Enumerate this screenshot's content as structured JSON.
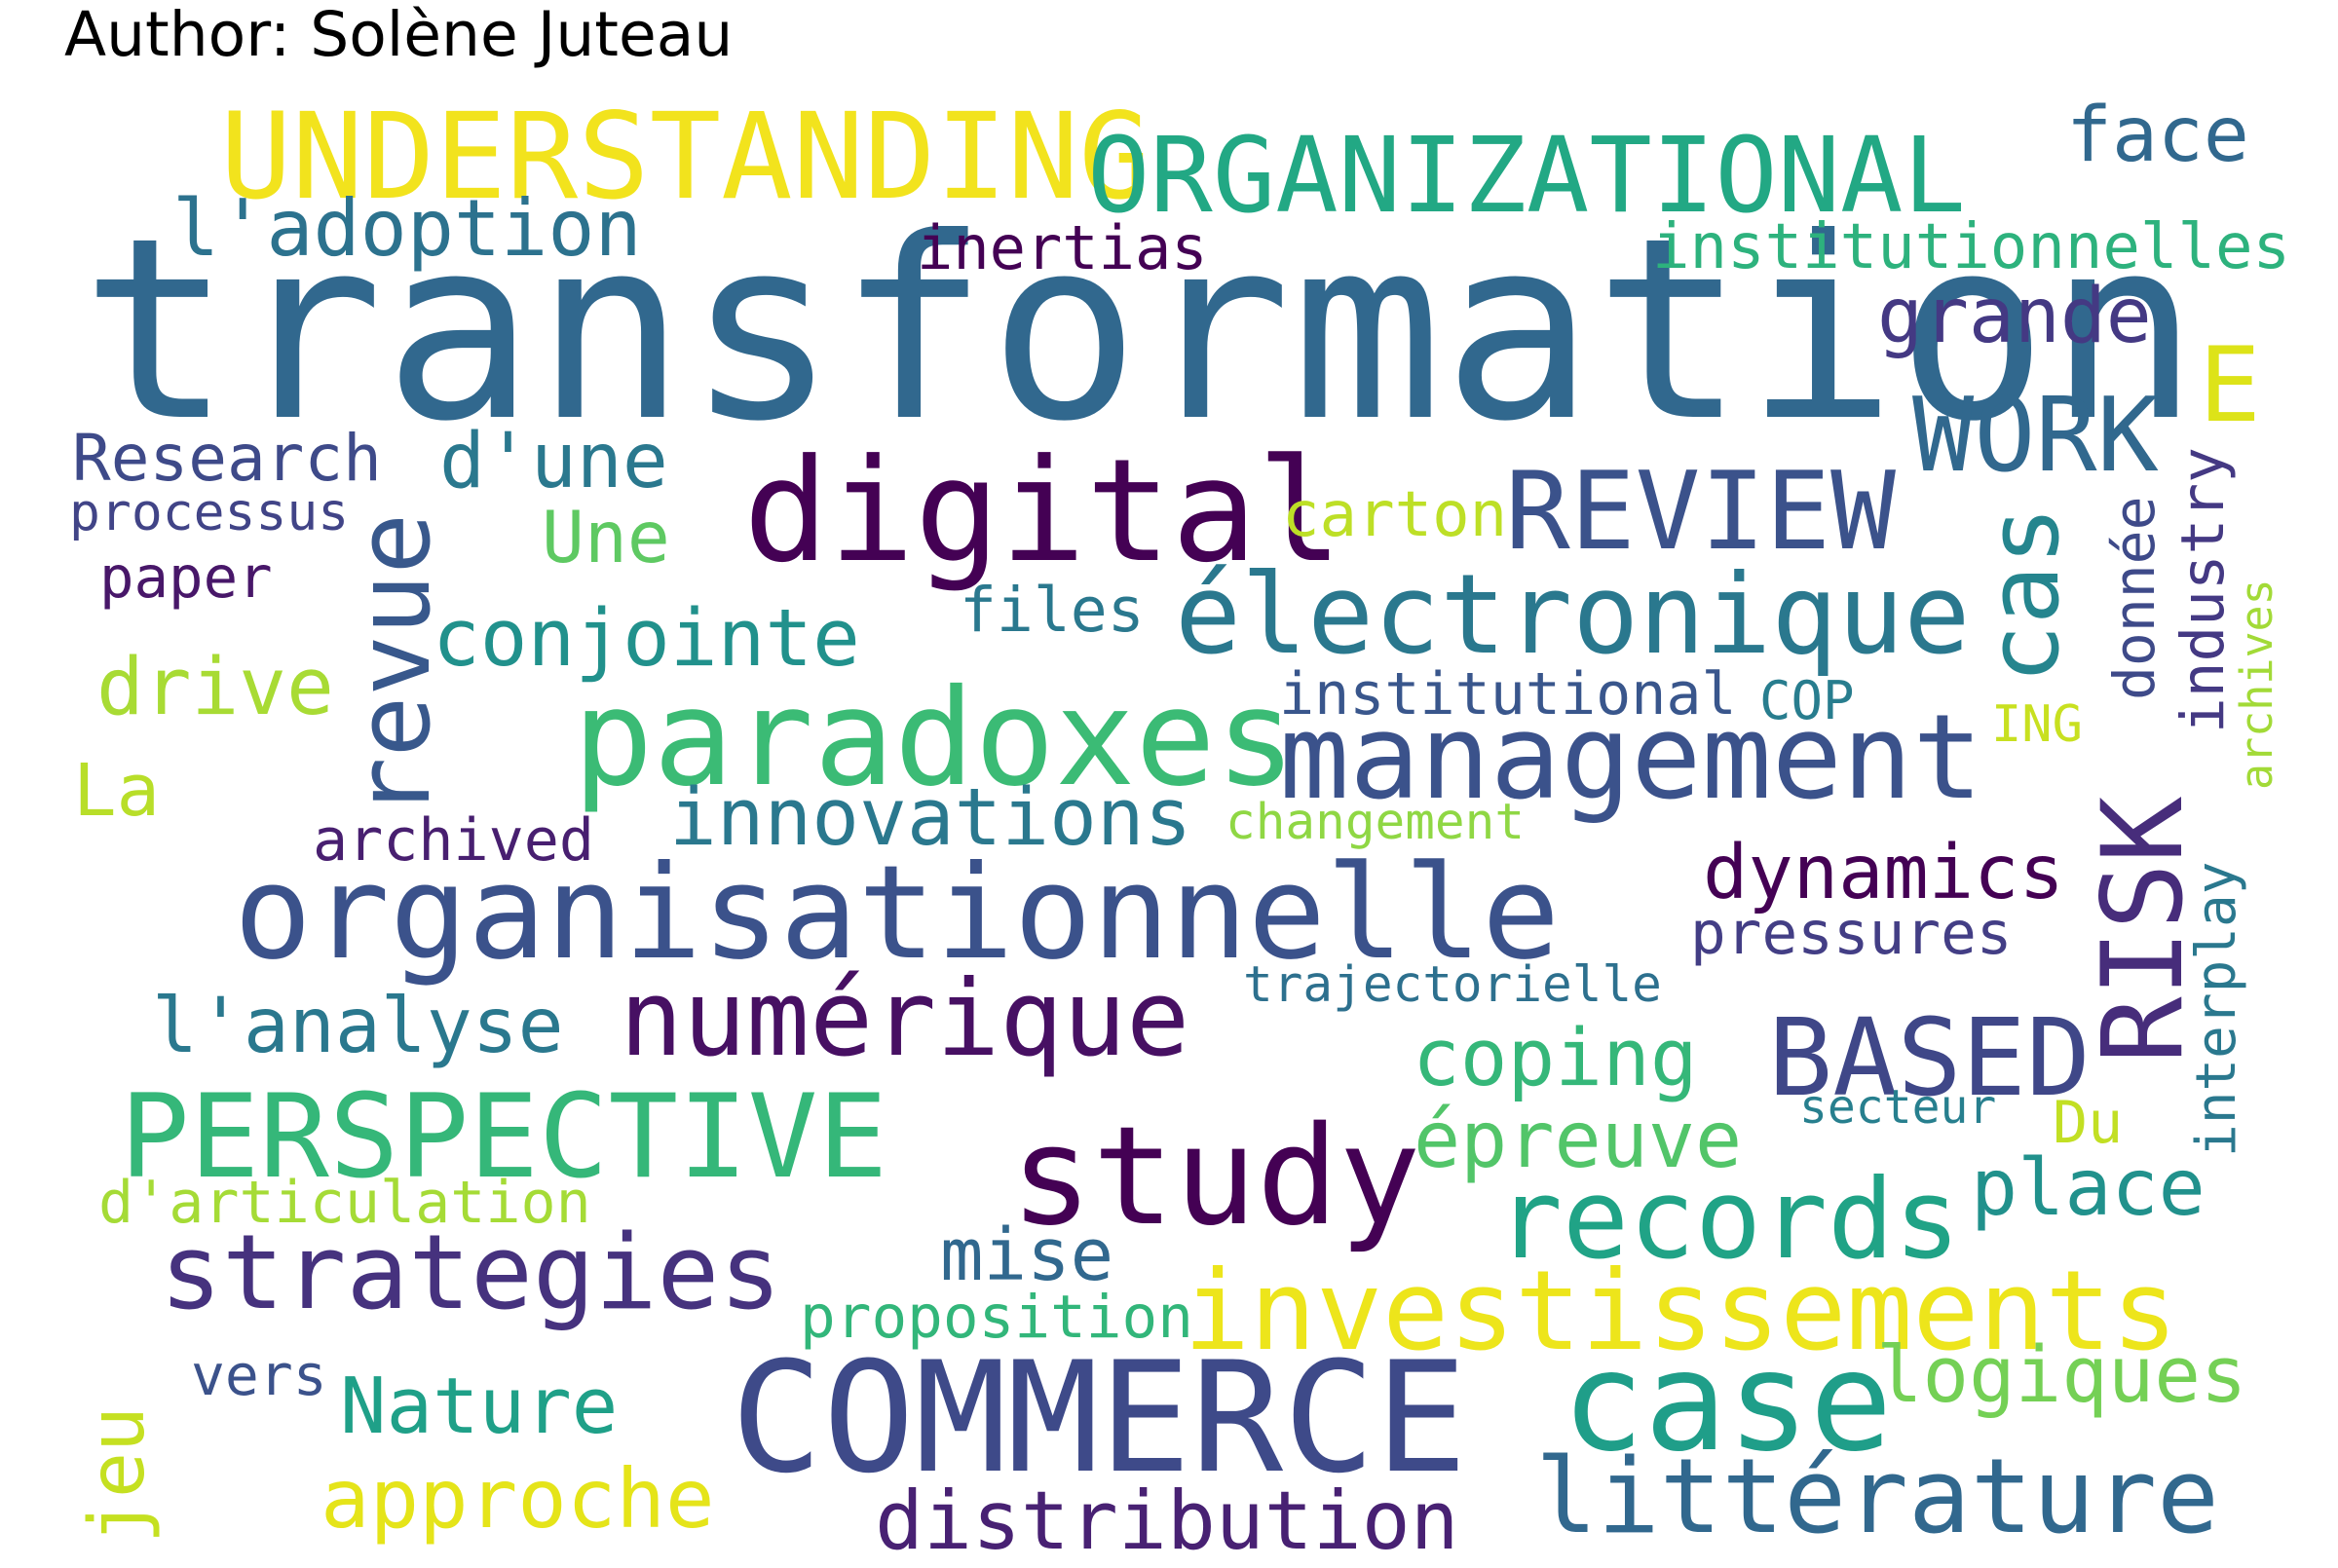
{
  "author_label": "Author: Solène Juteau",
  "words": [
    {
      "text": "transformation",
      "color": "#31688e"
    },
    {
      "text": "UNDERSTANDING",
      "color": "#f2e31d"
    },
    {
      "text": "ORGANIZATIONAL",
      "color": "#22a884"
    },
    {
      "text": "face",
      "color": "#31688e"
    },
    {
      "text": "l'adoption",
      "color": "#2c728e"
    },
    {
      "text": "inertias",
      "color": "#440154"
    },
    {
      "text": "institutionnelles",
      "color": "#2db27d"
    },
    {
      "text": "grande",
      "color": "#443983"
    },
    {
      "text": "E",
      "color": "#dde318"
    },
    {
      "text": "WORK",
      "color": "#31688e"
    },
    {
      "text": "digital",
      "color": "#440154"
    },
    {
      "text": "REVIEW",
      "color": "#3b528b"
    },
    {
      "text": "Research",
      "color": "#3e4a89"
    },
    {
      "text": "processus",
      "color": "#414487"
    },
    {
      "text": "d'une",
      "color": "#2a788e"
    },
    {
      "text": "carton",
      "color": "#bddf26"
    },
    {
      "text": "cas",
      "color": "#25858e"
    },
    {
      "text": "donnée",
      "color": "#3e4a89"
    },
    {
      "text": "industry",
      "color": "#443983"
    },
    {
      "text": "archives",
      "color": "#a2da37"
    },
    {
      "text": "paper",
      "color": "#481769"
    },
    {
      "text": "Une",
      "color": "#5ec962"
    },
    {
      "text": "files",
      "color": "#2a788e"
    },
    {
      "text": "électronique",
      "color": "#2a788e"
    },
    {
      "text": "revue",
      "color": "#38588c"
    },
    {
      "text": "conjointe",
      "color": "#21918c"
    },
    {
      "text": "drive",
      "color": "#a8db34"
    },
    {
      "text": "paradoxes",
      "color": "#3bbb75"
    },
    {
      "text": "institutional",
      "color": "#39568c"
    },
    {
      "text": "COP",
      "color": "#287d8e"
    },
    {
      "text": "ING",
      "color": "#c8e020"
    },
    {
      "text": "management",
      "color": "#3b528b"
    },
    {
      "text": "La",
      "color": "#b8de29"
    },
    {
      "text": "innovations",
      "color": "#2a788e"
    },
    {
      "text": "changement",
      "color": "#8fd744"
    },
    {
      "text": "archived",
      "color": "#481f70"
    },
    {
      "text": "dynamics",
      "color": "#440154"
    },
    {
      "text": "RISK",
      "color": "#472d7b"
    },
    {
      "text": "interplay",
      "color": "#2a788e"
    },
    {
      "text": "organisationnelle",
      "color": "#3b528b"
    },
    {
      "text": "pressures",
      "color": "#433e85"
    },
    {
      "text": "trajectorielle",
      "color": "#2d708e"
    },
    {
      "text": "l'analyse",
      "color": "#2a788e"
    },
    {
      "text": "numérique",
      "color": "#471063"
    },
    {
      "text": "BASED",
      "color": "#3f4788"
    },
    {
      "text": "coping",
      "color": "#35b779"
    },
    {
      "text": "PERSPECTIVE",
      "color": "#35b779"
    },
    {
      "text": "study",
      "color": "#440154"
    },
    {
      "text": "épreuve",
      "color": "#52c569"
    },
    {
      "text": "secteur",
      "color": "#277f8e"
    },
    {
      "text": "Du",
      "color": "#c2df23"
    },
    {
      "text": "d'articulation",
      "color": "#a5db36"
    },
    {
      "text": "place",
      "color": "#21918c"
    },
    {
      "text": "records",
      "color": "#20a386"
    },
    {
      "text": "strategies",
      "color": "#46327e"
    },
    {
      "text": "mise",
      "color": "#31688e"
    },
    {
      "text": "investissements",
      "color": "#ede51b"
    },
    {
      "text": "proposition",
      "color": "#32b67a"
    },
    {
      "text": "vers",
      "color": "#3b528b"
    },
    {
      "text": "logiques",
      "color": "#74d055"
    },
    {
      "text": "Nature",
      "color": "#1fa088"
    },
    {
      "text": "COMMERCE",
      "color": "#3e4a89"
    },
    {
      "text": "case",
      "color": "#1f9e89"
    },
    {
      "text": "jeu",
      "color": "#c5e021"
    },
    {
      "text": "approche",
      "color": "#e5e419"
    },
    {
      "text": "distribution",
      "color": "#482173"
    },
    {
      "text": "littérature",
      "color": "#31688e"
    }
  ]
}
